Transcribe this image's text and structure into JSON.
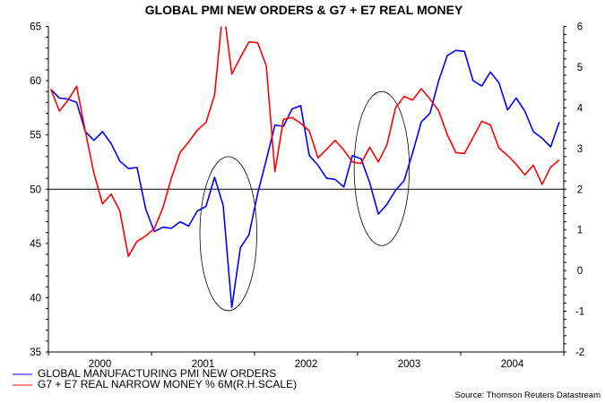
{
  "chart_data": {
    "type": "line",
    "title": "GLOBAL PMI NEW ORDERS & G7 + E7 REAL MONEY",
    "x_start": "2000-01",
    "frequency": "monthly",
    "x_tick_labels": [
      "2000",
      "2001",
      "2002",
      "2003",
      "2004"
    ],
    "y_left": {
      "range": [
        35,
        65
      ],
      "ticks": [
        "35",
        "40",
        "45",
        "50",
        "55",
        "60",
        "65"
      ],
      "minor_step": 1
    },
    "y_right": {
      "range": [
        -2,
        6
      ],
      "ticks": [
        "-2",
        "-1",
        "0",
        "1",
        "2",
        "3",
        "4",
        "5",
        "6"
      ],
      "minor_step": 0.2
    },
    "reference_line": {
      "left_value": 50,
      "right_value": 2
    },
    "series": [
      {
        "name": "GLOBAL MANUFACTURING PMI NEW ORDERS",
        "axis": "left",
        "color": "#0000ff",
        "values": [
          59.2,
          58.4,
          58.3,
          58.0,
          55.3,
          54.5,
          55.3,
          54.2,
          52.6,
          51.9,
          52.0,
          48.2,
          46.1,
          46.5,
          46.4,
          47.0,
          46.6,
          48.0,
          48.4,
          51.1,
          48.5,
          39.1,
          44.6,
          45.8,
          49.6,
          52.7,
          55.9,
          55.8,
          57.4,
          57.7,
          53.1,
          52.2,
          51.0,
          50.9,
          50.2,
          53.1,
          52.8,
          50.6,
          47.7,
          48.6,
          49.9,
          50.8,
          53.4,
          56.2,
          57.0,
          60.0,
          62.3,
          62.8,
          62.7,
          60.0,
          59.5,
          60.8,
          59.8,
          57.3,
          58.4,
          57.2,
          55.3,
          54.7,
          53.9,
          56.2
        ]
      },
      {
        "name": "G7 + E7 REAL NARROW MONEY % 6M(R.H.SCALE)",
        "axis": "right",
        "color": "#ff0000",
        "values": [
          4.46,
          3.92,
          4.19,
          4.53,
          3.42,
          2.39,
          1.64,
          1.88,
          1.47,
          0.35,
          0.72,
          0.85,
          1.03,
          1.54,
          2.28,
          2.9,
          3.16,
          3.45,
          3.64,
          4.31,
          6.5,
          4.83,
          5.24,
          5.62,
          5.6,
          5.03,
          2.43,
          3.72,
          3.76,
          3.62,
          3.43,
          2.77,
          2.98,
          3.2,
          2.96,
          2.67,
          2.63,
          3.03,
          2.67,
          3.09,
          4.0,
          4.28,
          4.19,
          4.47,
          4.21,
          3.93,
          3.34,
          2.9,
          2.88,
          3.27,
          3.67,
          3.58,
          3.01,
          2.83,
          2.61,
          2.35,
          2.59,
          2.12,
          2.54,
          2.72
        ]
      }
    ],
    "annotations": [
      {
        "type": "ellipse",
        "center_month_index": 20.6,
        "center_left_value": 45.9,
        "half_width_months": 3.3,
        "half_height_left_units": 7.1
      },
      {
        "type": "ellipse",
        "center_month_index": 38.4,
        "center_left_value": 51.9,
        "half_width_months": 3.2,
        "half_height_left_units": 7.1
      }
    ],
    "legend_placement": "bottom-left",
    "source": "Source: Thomson Reuters Datastream"
  }
}
